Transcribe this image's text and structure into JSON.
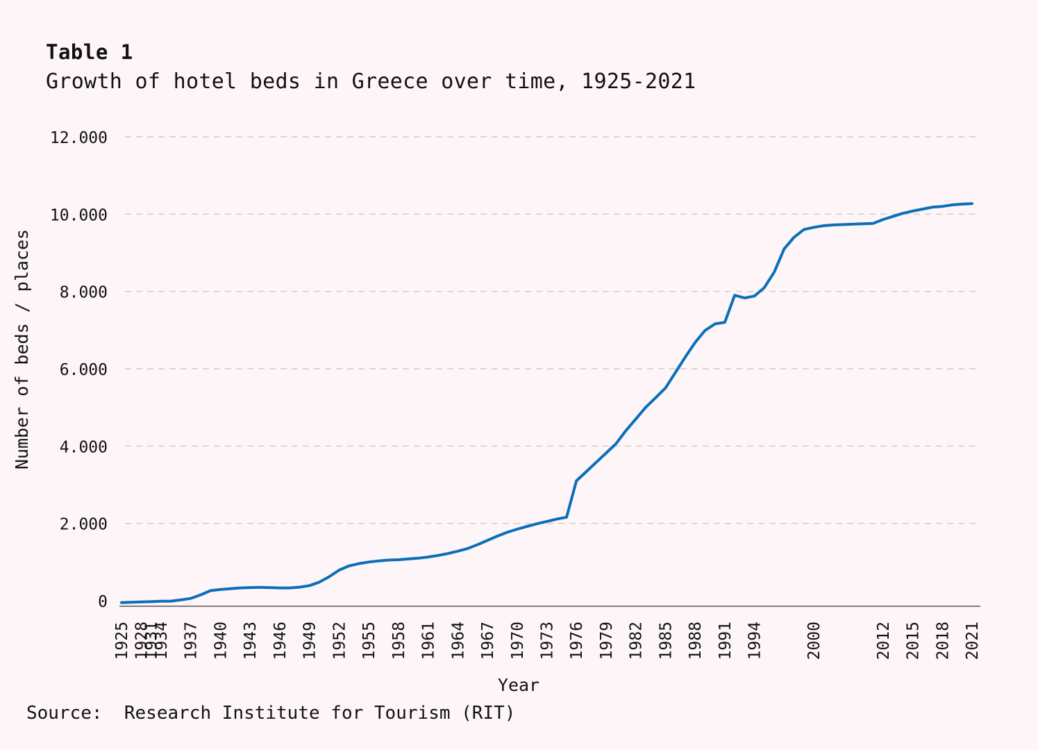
{
  "title": "Table 1",
  "subtitle": "Growth of hotel beds in Greece over time, 1925-2021",
  "source": "Source:  Research Institute for Tourism (RIT)",
  "colors": {
    "background": "#fdf5f7",
    "line": "#0a6fb8",
    "grid": "#c8c2c4",
    "axis": "#555555"
  },
  "chart_data": {
    "type": "line",
    "title": "Table 1",
    "subtitle": "Growth of hotel beds in Greece over time, 1925-2021",
    "xlabel": "Year",
    "ylabel": "Number of beds / places",
    "ylim": [
      0,
      12000
    ],
    "yticks": [
      0,
      2000,
      4000,
      6000,
      8000,
      10000,
      12000
    ],
    "ytick_labels": [
      "0",
      "2.000",
      "4.000",
      "6.000",
      "8.000",
      "10.000",
      "12.000"
    ],
    "xtick_labels": [
      "1925",
      "1928",
      "1931",
      "1934",
      "1937",
      "1940",
      "1943",
      "1946",
      "1949",
      "1952",
      "1955",
      "1958",
      "1961",
      "1964",
      "1967",
      "1970",
      "1973",
      "1976",
      "1979",
      "1982",
      "1985",
      "1988",
      "1991",
      "1994",
      "2000",
      "2012",
      "2015",
      "2018",
      "2021"
    ],
    "grid": "horizontal dashed",
    "legend": "none",
    "series": [
      {
        "points": [
          [
            "1925",
            -50
          ],
          [
            "1926",
            -40
          ],
          [
            "1928",
            -30
          ],
          [
            "1931",
            -25
          ],
          [
            "1934",
            -15
          ],
          [
            "1935",
            -10
          ],
          [
            "1936",
            20
          ],
          [
            "1937",
            60
          ],
          [
            "1938",
            150
          ],
          [
            "1939",
            260
          ],
          [
            "1940",
            290
          ],
          [
            "1941",
            310
          ],
          [
            "1942",
            330
          ],
          [
            "1943",
            340
          ],
          [
            "1944",
            345
          ],
          [
            "1945",
            340
          ],
          [
            "1946",
            330
          ],
          [
            "1947",
            330
          ],
          [
            "1948",
            350
          ],
          [
            "1949",
            390
          ],
          [
            "1950",
            480
          ],
          [
            "1951",
            620
          ],
          [
            "1952",
            790
          ],
          [
            "1953",
            900
          ],
          [
            "1954",
            960
          ],
          [
            "1955",
            1000
          ],
          [
            "1956",
            1030
          ],
          [
            "1957",
            1050
          ],
          [
            "1958",
            1060
          ],
          [
            "1959",
            1080
          ],
          [
            "1960",
            1100
          ],
          [
            "1961",
            1130
          ],
          [
            "1962",
            1170
          ],
          [
            "1963",
            1220
          ],
          [
            "1964",
            1280
          ],
          [
            "1965",
            1350
          ],
          [
            "1966",
            1450
          ],
          [
            "1967",
            1560
          ],
          [
            "1968",
            1670
          ],
          [
            "1969",
            1770
          ],
          [
            "1970",
            1850
          ],
          [
            "1971",
            1920
          ],
          [
            "1972",
            1990
          ],
          [
            "1973",
            2050
          ],
          [
            "1974",
            2110
          ],
          [
            "1975",
            2160
          ],
          [
            "1976",
            3100
          ],
          [
            "1977",
            3340
          ],
          [
            "1978",
            3580
          ],
          [
            "1979",
            3820
          ],
          [
            "1980",
            4060
          ],
          [
            "1981",
            4400
          ],
          [
            "1982",
            4700
          ],
          [
            "1983",
            5000
          ],
          [
            "1984",
            5250
          ],
          [
            "1985",
            5500
          ],
          [
            "1986",
            5900
          ],
          [
            "1987",
            6300
          ],
          [
            "1988",
            6680
          ],
          [
            "1989",
            6990
          ],
          [
            "1990",
            7160
          ],
          [
            "1991",
            7200
          ],
          [
            "1992",
            7900
          ],
          [
            "1993",
            7830
          ],
          [
            "1994",
            7880
          ],
          [
            "1995",
            8100
          ],
          [
            "1996",
            8500
          ],
          [
            "1997",
            9100
          ],
          [
            "1998",
            9400
          ],
          [
            "1999",
            9600
          ],
          [
            "2000",
            9660
          ],
          [
            "2001",
            9700
          ],
          [
            "2002",
            9720
          ],
          [
            "2005",
            9730
          ],
          [
            "2008",
            9740
          ],
          [
            "2010",
            9750
          ],
          [
            "2011",
            9760
          ],
          [
            "2012",
            9860
          ],
          [
            "2013",
            9940
          ],
          [
            "2014",
            10020
          ],
          [
            "2015",
            10080
          ],
          [
            "2016",
            10130
          ],
          [
            "2017",
            10180
          ],
          [
            "2018",
            10200
          ],
          [
            "2019",
            10240
          ],
          [
            "2020",
            10260
          ],
          [
            "2021",
            10270
          ]
        ]
      }
    ]
  }
}
